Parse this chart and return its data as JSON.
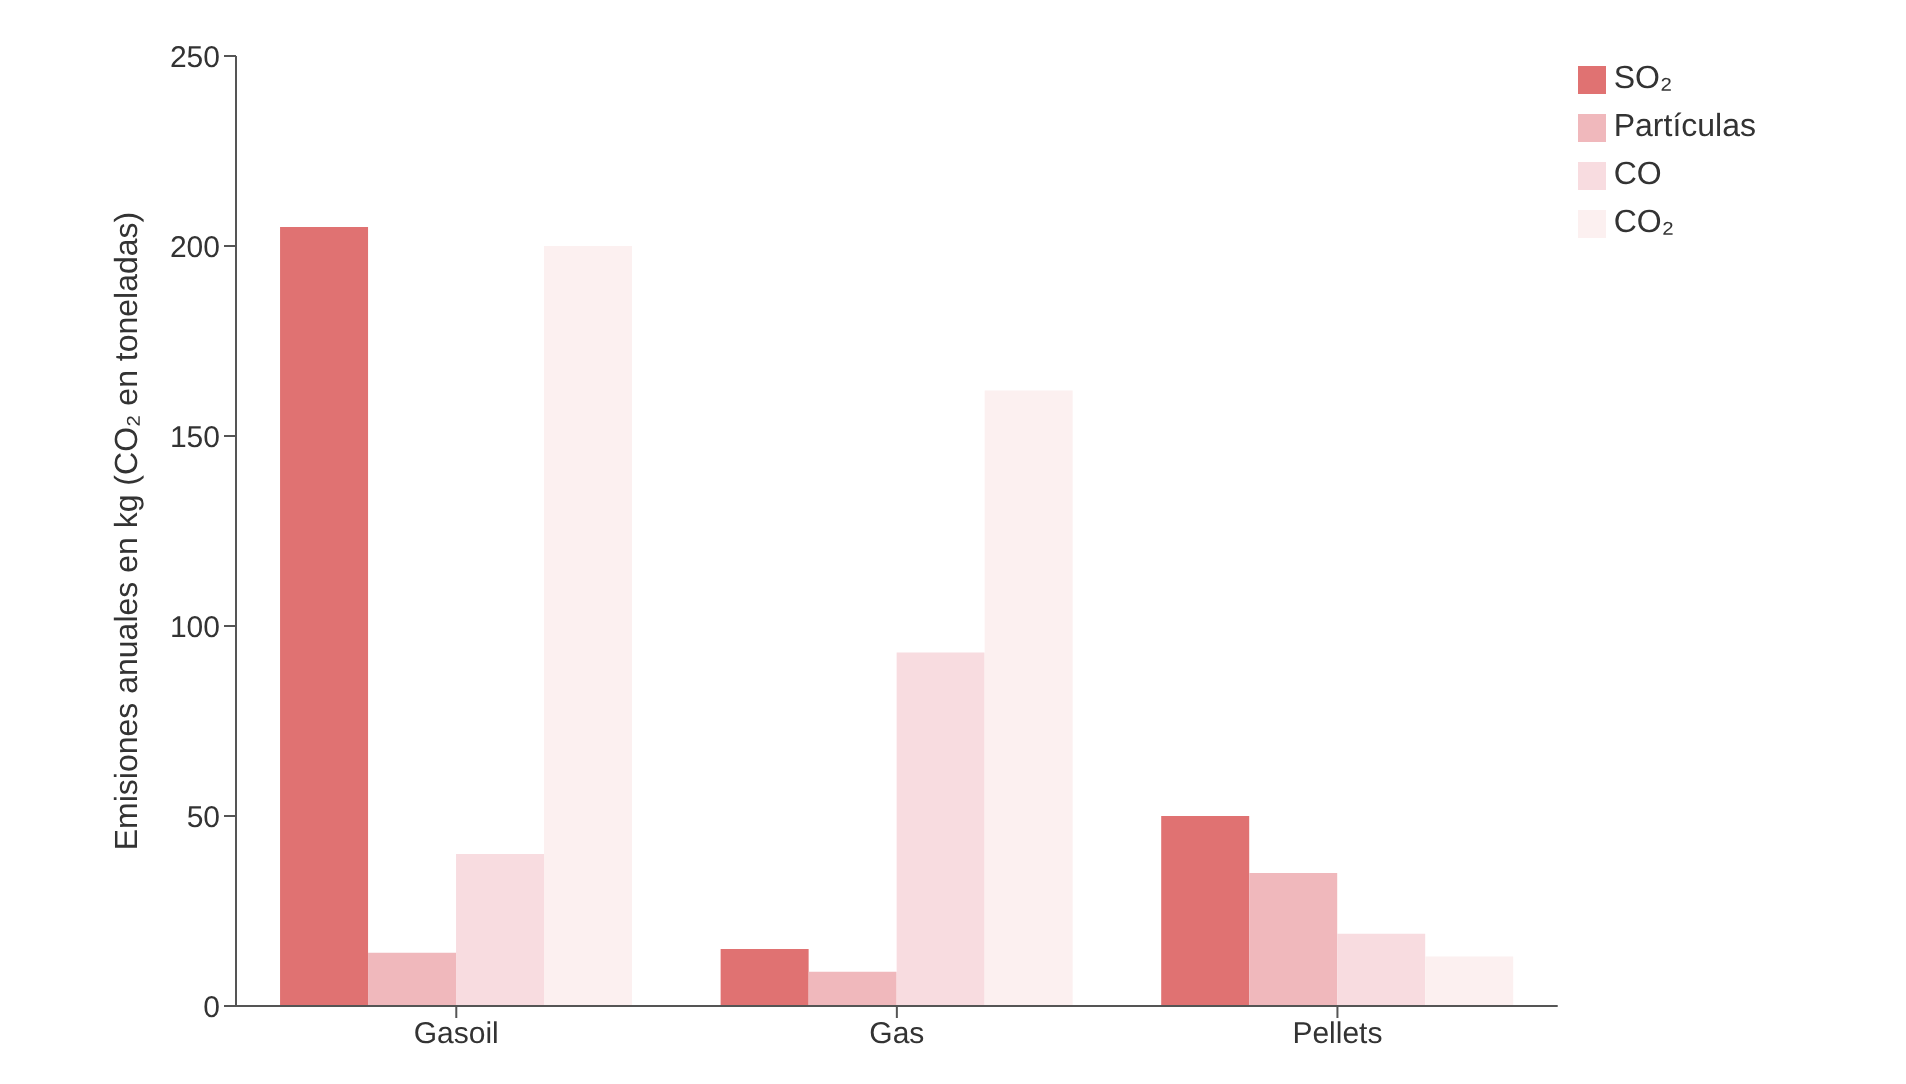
{
  "chart_data": {
    "type": "bar",
    "ylabel": "Emisiones anuales en kg (CO₂ en toneladas)",
    "categories": [
      "Gasoil",
      "Gas",
      "Pellets"
    ],
    "series": [
      {
        "name": "SO₂",
        "color": "#e07272",
        "values": [
          205,
          15,
          50
        ]
      },
      {
        "name": "Partículas",
        "color": "#f0b8bc",
        "values": [
          14,
          9,
          35
        ]
      },
      {
        "name": "CO",
        "color": "#f8dce0",
        "values": [
          40,
          93,
          19
        ]
      },
      {
        "name": "CO₂",
        "color": "#fcf0f0",
        "values": [
          200,
          162,
          13
        ]
      }
    ],
    "ylim": [
      0,
      250
    ],
    "yticks": [
      0,
      50,
      100,
      150,
      200,
      250
    ],
    "grid": false,
    "legend": "top right"
  }
}
